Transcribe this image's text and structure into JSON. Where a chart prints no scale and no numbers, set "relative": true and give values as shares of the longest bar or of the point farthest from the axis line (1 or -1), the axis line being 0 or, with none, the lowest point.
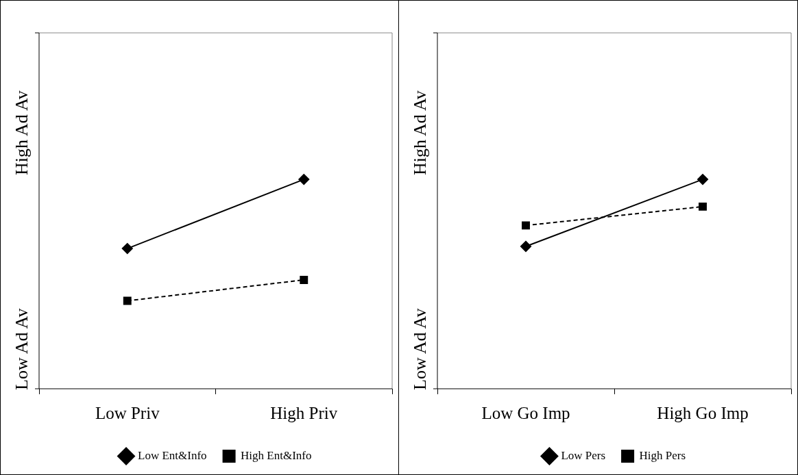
{
  "chart_data": [
    {
      "type": "line",
      "relative": true,
      "categories": [
        "Low Priv",
        "High Priv"
      ],
      "grid": false,
      "legend": "bottom",
      "annotations": [
        "Low Ad Av",
        "High Ad Av"
      ],
      "series": [
        {
          "name": "Low Ent&Info",
          "color": "#000000",
          "values": [
            0.67,
            1
          ],
          "marker": "diamond",
          "line_style": "solid"
        },
        {
          "name": "High Ent&Info",
          "color": "#000000",
          "values": [
            0.42,
            0.52
          ],
          "marker": "square",
          "line_style": "dashed"
        }
      ]
    },
    {
      "type": "line",
      "relative": true,
      "categories": [
        "Low Go Imp",
        "High Go Imp"
      ],
      "grid": false,
      "legend": "bottom",
      "annotations": [
        "Low Ad Av",
        "High Ad Av"
      ],
      "series": [
        {
          "name": "Low Pers",
          "color": "#000000",
          "values": [
            0.68,
            1
          ],
          "marker": "diamond",
          "line_style": "solid"
        },
        {
          "name": "High Pers",
          "color": "#000000",
          "values": [
            0.78,
            0.87
          ],
          "marker": "square",
          "line_style": "dashed"
        }
      ]
    }
  ]
}
